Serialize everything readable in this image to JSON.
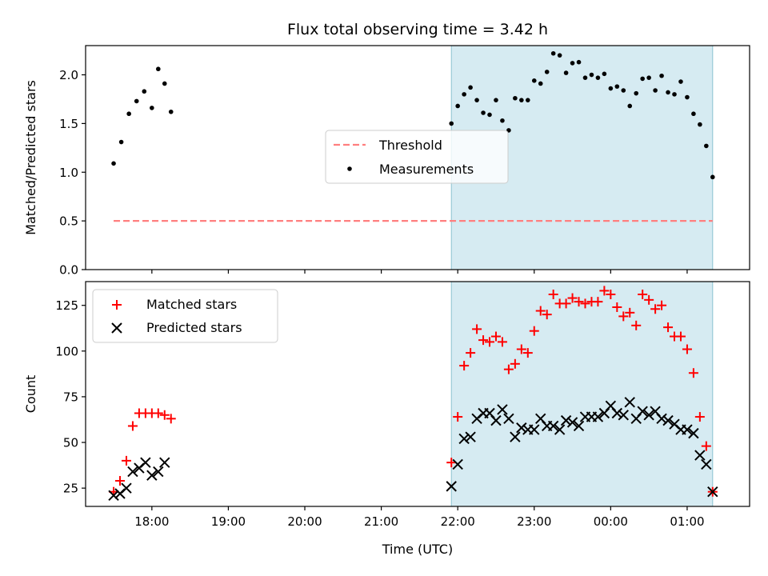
{
  "title": "Flux total observing time = 3.42 h",
  "xlabel": "Time (UTC)",
  "x_ticks": [
    "18:00",
    "19:00",
    "20:00",
    "21:00",
    "22:00",
    "23:00",
    "00:00",
    "01:00"
  ],
  "observing_window": {
    "start": "21:55",
    "end": "01:20"
  },
  "chart_data": [
    {
      "type": "scatter",
      "ylabel": "Matched/Predicted stars",
      "ylim": [
        0,
        2.3
      ],
      "y_ticks": [
        "0.0",
        "0.5",
        "1.0",
        "1.5",
        "2.0"
      ],
      "legend_placement": "center",
      "threshold": {
        "name": "Threshold",
        "value": 0.5,
        "x_range": [
          "17:30",
          "01:20"
        ],
        "color": "#ff7f7f"
      },
      "series": [
        {
          "name": "Measurements",
          "color": "#000000",
          "points": [
            [
              "17:30",
              1.09
            ],
            [
              "17:36",
              1.31
            ],
            [
              "17:42",
              1.6
            ],
            [
              "17:48",
              1.73
            ],
            [
              "17:54",
              1.83
            ],
            [
              "18:00",
              1.66
            ],
            [
              "18:05",
              2.06
            ],
            [
              "18:10",
              1.91
            ],
            [
              "18:15",
              1.62
            ],
            [
              "21:55",
              1.5
            ],
            [
              "22:00",
              1.68
            ],
            [
              "22:05",
              1.8
            ],
            [
              "22:10",
              1.87
            ],
            [
              "22:15",
              1.74
            ],
            [
              "22:20",
              1.61
            ],
            [
              "22:25",
              1.59
            ],
            [
              "22:30",
              1.74
            ],
            [
              "22:35",
              1.53
            ],
            [
              "22:40",
              1.43
            ],
            [
              "22:45",
              1.76
            ],
            [
              "22:50",
              1.74
            ],
            [
              "22:55",
              1.74
            ],
            [
              "23:00",
              1.94
            ],
            [
              "23:05",
              1.91
            ],
            [
              "23:10",
              2.03
            ],
            [
              "23:15",
              2.22
            ],
            [
              "23:20",
              2.2
            ],
            [
              "23:25",
              2.02
            ],
            [
              "23:30",
              2.12
            ],
            [
              "23:35",
              2.13
            ],
            [
              "23:40",
              1.97
            ],
            [
              "23:45",
              2.0
            ],
            [
              "23:50",
              1.97
            ],
            [
              "23:55",
              2.01
            ],
            [
              "00:00",
              1.86
            ],
            [
              "00:05",
              1.88
            ],
            [
              "00:10",
              1.84
            ],
            [
              "00:15",
              1.68
            ],
            [
              "00:20",
              1.81
            ],
            [
              "00:25",
              1.96
            ],
            [
              "00:30",
              1.97
            ],
            [
              "00:35",
              1.84
            ],
            [
              "00:40",
              1.99
            ],
            [
              "00:45",
              1.82
            ],
            [
              "00:50",
              1.8
            ],
            [
              "00:55",
              1.93
            ],
            [
              "01:00",
              1.77
            ],
            [
              "01:05",
              1.6
            ],
            [
              "01:10",
              1.49
            ],
            [
              "01:15",
              1.27
            ],
            [
              "01:20",
              0.95
            ]
          ]
        }
      ]
    },
    {
      "type": "scatter",
      "ylabel": "Count",
      "ylim": [
        15,
        138
      ],
      "y_ticks": [
        "25",
        "50",
        "75",
        "100",
        "125"
      ],
      "legend_placement": "upper left",
      "series": [
        {
          "name": "Matched stars",
          "marker": "plus",
          "color": "#ff0000",
          "points": [
            [
              "17:30",
              23
            ],
            [
              "17:35",
              29
            ],
            [
              "17:40",
              40
            ],
            [
              "17:45",
              59
            ],
            [
              "17:50",
              66
            ],
            [
              "17:55",
              66
            ],
            [
              "18:00",
              66
            ],
            [
              "18:05",
              66
            ],
            [
              "18:10",
              65
            ],
            [
              "18:15",
              63
            ],
            [
              "21:55",
              39
            ],
            [
              "22:00",
              64
            ],
            [
              "22:05",
              92
            ],
            [
              "22:10",
              99
            ],
            [
              "22:15",
              112
            ],
            [
              "22:20",
              106
            ],
            [
              "22:25",
              105
            ],
            [
              "22:30",
              108
            ],
            [
              "22:35",
              105
            ],
            [
              "22:40",
              90
            ],
            [
              "22:45",
              93
            ],
            [
              "22:50",
              101
            ],
            [
              "22:55",
              99
            ],
            [
              "23:00",
              111
            ],
            [
              "23:05",
              122
            ],
            [
              "23:10",
              120
            ],
            [
              "23:15",
              131
            ],
            [
              "23:20",
              126
            ],
            [
              "23:25",
              126
            ],
            [
              "23:30",
              129
            ],
            [
              "23:35",
              127
            ],
            [
              "23:40",
              126
            ],
            [
              "23:45",
              127
            ],
            [
              "23:50",
              127
            ],
            [
              "23:55",
              133
            ],
            [
              "00:00",
              131
            ],
            [
              "00:05",
              124
            ],
            [
              "00:10",
              119
            ],
            [
              "00:15",
              121
            ],
            [
              "00:20",
              114
            ],
            [
              "00:25",
              131
            ],
            [
              "00:30",
              128
            ],
            [
              "00:35",
              123
            ],
            [
              "00:40",
              125
            ],
            [
              "00:45",
              113
            ],
            [
              "00:50",
              108
            ],
            [
              "00:55",
              108
            ],
            [
              "01:00",
              101
            ],
            [
              "01:05",
              88
            ],
            [
              "01:10",
              64
            ],
            [
              "01:15",
              48
            ],
            [
              "01:20",
              23
            ]
          ]
        },
        {
          "name": "Predicted stars",
          "marker": "x",
          "color": "#000000",
          "points": [
            [
              "17:30",
              21
            ],
            [
              "17:35",
              22
            ],
            [
              "17:40",
              25
            ],
            [
              "17:45",
              34
            ],
            [
              "17:50",
              36
            ],
            [
              "17:55",
              39
            ],
            [
              "18:00",
              32
            ],
            [
              "18:05",
              34
            ],
            [
              "18:10",
              39
            ],
            [
              "21:55",
              26
            ],
            [
              "22:00",
              38
            ],
            [
              "22:05",
              52
            ],
            [
              "22:10",
              53
            ],
            [
              "22:15",
              63
            ],
            [
              "22:20",
              66
            ],
            [
              "22:25",
              66
            ],
            [
              "22:30",
              62
            ],
            [
              "22:35",
              68
            ],
            [
              "22:40",
              63
            ],
            [
              "22:45",
              53
            ],
            [
              "22:50",
              58
            ],
            [
              "22:55",
              57
            ],
            [
              "23:00",
              57
            ],
            [
              "23:05",
              63
            ],
            [
              "23:10",
              59
            ],
            [
              "23:15",
              59
            ],
            [
              "23:20",
              57
            ],
            [
              "23:25",
              62
            ],
            [
              "23:30",
              61
            ],
            [
              "23:35",
              59
            ],
            [
              "23:40",
              64
            ],
            [
              "23:45",
              64
            ],
            [
              "23:50",
              64
            ],
            [
              "23:55",
              66
            ],
            [
              "00:00",
              70
            ],
            [
              "00:05",
              66
            ],
            [
              "00:10",
              65
            ],
            [
              "00:15",
              72
            ],
            [
              "00:20",
              63
            ],
            [
              "00:25",
              67
            ],
            [
              "00:30",
              65
            ],
            [
              "00:35",
              67
            ],
            [
              "00:40",
              63
            ],
            [
              "00:45",
              62
            ],
            [
              "00:50",
              60
            ],
            [
              "00:55",
              57
            ],
            [
              "01:00",
              57
            ],
            [
              "01:05",
              55
            ],
            [
              "01:10",
              43
            ],
            [
              "01:15",
              38
            ],
            [
              "01:20",
              23
            ]
          ]
        }
      ]
    }
  ]
}
